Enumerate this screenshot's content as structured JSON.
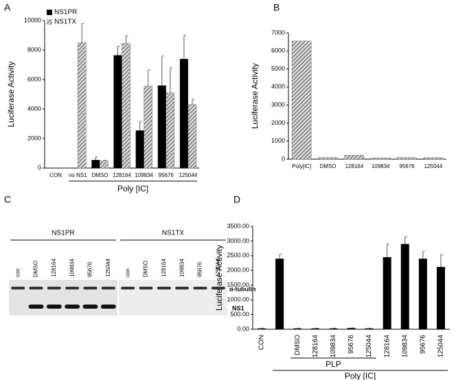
{
  "chart_data": [
    {
      "type": "bar",
      "label": "A",
      "ylabel": "Luciferase  Activity",
      "xlabel": "Poly [IC]",
      "categories": [
        "CON",
        "no NS1",
        "DMSO",
        "128164",
        "109834",
        "95676",
        "125044"
      ],
      "series": [
        {
          "name": "NS1PR",
          "color": "#000000",
          "pattern": "solid",
          "values": [
            null,
            null,
            550,
            7650,
            2550,
            5600,
            7400
          ],
          "errors": [
            null,
            null,
            200,
            600,
            600,
            2000,
            1600
          ]
        },
        {
          "name": "NS1TX",
          "color": "#555555",
          "pattern": "hatch",
          "values": [
            null,
            8500,
            480,
            8450,
            5550,
            5100,
            4300
          ],
          "errors": [
            null,
            1300,
            50,
            500,
            1100,
            1700,
            350
          ]
        }
      ],
      "ylim": [
        0,
        10000
      ],
      "yticks": [
        0,
        2000,
        4000,
        6000,
        8000,
        10000
      ],
      "legend": "top-left"
    },
    {
      "type": "bar",
      "label": "B",
      "ylabel": "Luciferase  Activity",
      "categories": [
        "Poly[IC]",
        "DMSO",
        "128164",
        "109834",
        "95676",
        "125044"
      ],
      "series": [
        {
          "name": null,
          "color": "#555555",
          "pattern": "hatch",
          "values": [
            6550,
            90,
            220,
            70,
            90,
            80
          ]
        }
      ],
      "ylim": [
        0,
        7000
      ],
      "yticks": [
        0,
        1000,
        2000,
        3000,
        4000,
        5000,
        6000,
        7000
      ]
    },
    {
      "type": "bar",
      "label": "D",
      "ylabel": "Luciferase  Activity",
      "group_labels": [
        "PLP",
        "Poly [IC]"
      ],
      "categories": [
        "CON",
        null,
        "DMSO",
        "128164",
        "109834",
        "95676",
        "125044",
        "128164",
        "109834",
        "95676",
        "125044"
      ],
      "series": [
        {
          "name": null,
          "color": "#000000",
          "pattern": "solid",
          "values": [
            30,
            2400,
            30,
            30,
            30,
            40,
            30,
            2450,
            2900,
            2400,
            2120
          ],
          "errors": [
            10,
            150,
            10,
            10,
            10,
            10,
            10,
            450,
            250,
            250,
            420
          ]
        }
      ],
      "ylim": [
        0,
        3500
      ],
      "yticks": [
        {
          "value": 0,
          "label": "0.00"
        },
        {
          "value": 500,
          "label": "500.00"
        },
        {
          "value": 1000,
          "label": "1000.00"
        },
        {
          "value": 1500,
          "label": "1500.00"
        },
        {
          "value": 2000,
          "label": "2000.00"
        },
        {
          "value": 2500,
          "label": "2500.00"
        },
        {
          "value": 3000,
          "label": "3000.00"
        },
        {
          "value": 3500,
          "label": "3500.00"
        }
      ]
    }
  ],
  "blot": {
    "label": "C",
    "groups": [
      {
        "name": "NS1PR",
        "lanes": [
          "con",
          "DMSO",
          "128164",
          "109834",
          "95676",
          "125044"
        ]
      },
      {
        "name": "NS1TX",
        "lanes": [
          "con",
          "DMSO",
          "128164",
          "109834",
          "95676",
          "125044"
        ]
      }
    ],
    "bands": [
      "α-tubulin",
      "NS1"
    ]
  }
}
